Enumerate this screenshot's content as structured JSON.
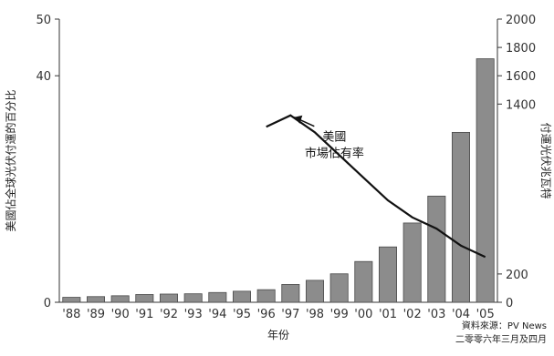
{
  "chart_data": {
    "type": "bar",
    "categories": [
      "'88",
      "'89",
      "'90",
      "'91",
      "'92",
      "'93",
      "'94",
      "'95",
      "'96",
      "'97",
      "'98",
      "'99",
      "'00",
      "'01",
      "'02",
      "'03",
      "'04",
      "'05"
    ],
    "series": [
      {
        "axis": "right",
        "kind": "bar",
        "values": [
          35,
          40,
          46,
          55,
          58,
          60,
          69,
          78,
          89,
          126,
          155,
          201,
          288,
          391,
          560,
          750,
          1200,
          1720
        ],
        "color": "#8c8c8c"
      },
      {
        "name": "美國市場佔有率",
        "axis": "left",
        "kind": "line",
        "values": [
          null,
          null,
          null,
          null,
          null,
          null,
          null,
          null,
          31,
          33,
          30,
          26,
          22,
          18,
          15,
          13,
          10,
          8
        ],
        "color": "#111111"
      }
    ],
    "xlabel": "年份",
    "ylabel": "美國佔全球光伏付運的百分比",
    "y2label": "付運光伏兆瓦特",
    "ylim": [
      0,
      50
    ],
    "yticks": [
      0,
      40,
      50
    ],
    "y2lim": [
      0,
      2000
    ],
    "y2ticks": [
      0,
      200,
      1400,
      1600,
      1800,
      2000
    ],
    "grid": false
  },
  "source": {
    "line1": "資料來源：PV News",
    "line2": "二零零六年三月及四月"
  }
}
